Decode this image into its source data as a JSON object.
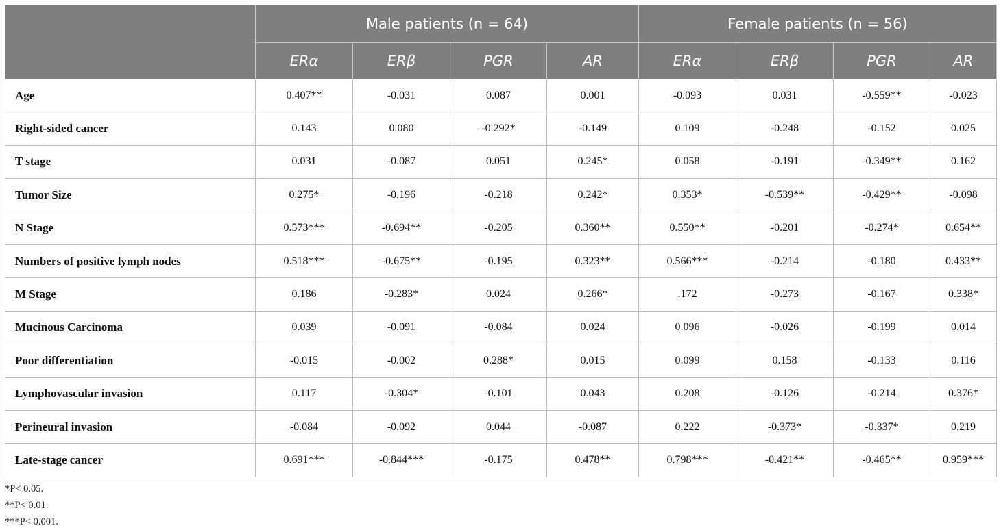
{
  "header": {
    "groups": [
      "Male patients (n = 64)",
      "Female patients (n = 56)"
    ],
    "columns": [
      "ERα",
      "ERβ",
      "PGR",
      "AR",
      "ERα",
      "ERβ",
      "PGR",
      "AR"
    ]
  },
  "table": {
    "rows": [
      [
        "Age",
        "0.407**",
        "-0.031",
        "0.087",
        "0.001",
        "-0.093",
        "0.031",
        "-0.559**",
        "-0.023"
      ],
      [
        "Right-sided cancer",
        "0.143",
        "0.080",
        "-0.292*",
        "-0.149",
        "0.109",
        "-0.248",
        "-0.152",
        "0.025"
      ],
      [
        "T stage",
        "0.031",
        "-0.087",
        "0.051",
        "0.245*",
        "0.058",
        "-0.191",
        "-0.349**",
        "0.162"
      ],
      [
        "Tumor Size",
        "0.275*",
        "-0.196",
        "-0.218",
        "0.242*",
        "0.353*",
        "-0.539**",
        "-0.429**",
        "-0.098"
      ],
      [
        "N Stage",
        "0.573***",
        "-0.694**",
        "-0.205",
        "0.360**",
        "0.550**",
        "-0.201",
        "-0.274*",
        "0.654**"
      ],
      [
        "Numbers of positive lymph nodes",
        "0.518***",
        "-0.675**",
        "-0.195",
        "0.323**",
        "0.566***",
        "-0.214",
        "-0.180",
        "0.433**"
      ],
      [
        "M Stage",
        "0.186",
        "-0.283*",
        "0.024",
        "0.266*",
        ".172",
        "-0.273",
        "-0.167",
        "0.338*"
      ],
      [
        "Mucinous Carcinoma",
        "0.039",
        "-0.091",
        "-0.084",
        "0.024",
        "0.096",
        "-0.026",
        "-0.199",
        "0.014"
      ],
      [
        "Poor differentiation",
        "-0.015",
        "-0.002",
        "0.288*",
        "0.015",
        "0.099",
        "0.158",
        "-0.133",
        "0.116"
      ],
      [
        "Lymphovascular invasion",
        "0.117",
        "-0.304*",
        "-0.101",
        "0.043",
        "0.208",
        "-0.126",
        "-0.214",
        "0.376*"
      ],
      [
        "Perineural invasion",
        "-0.084",
        "-0.092",
        "0.044",
        "-0.087",
        "0.222",
        "-0.373*",
        "-0.337*",
        "0.219"
      ],
      [
        "Late-stage cancer",
        "0.691***",
        "-0.844***",
        "-0.175",
        "0.478**",
        "0.798***",
        "-0.421**",
        "-0.465**",
        "0.959***"
      ]
    ]
  },
  "footnotes": [
    "*P< 0.05.",
    "**P< 0.01.",
    "***P< 0.001."
  ]
}
